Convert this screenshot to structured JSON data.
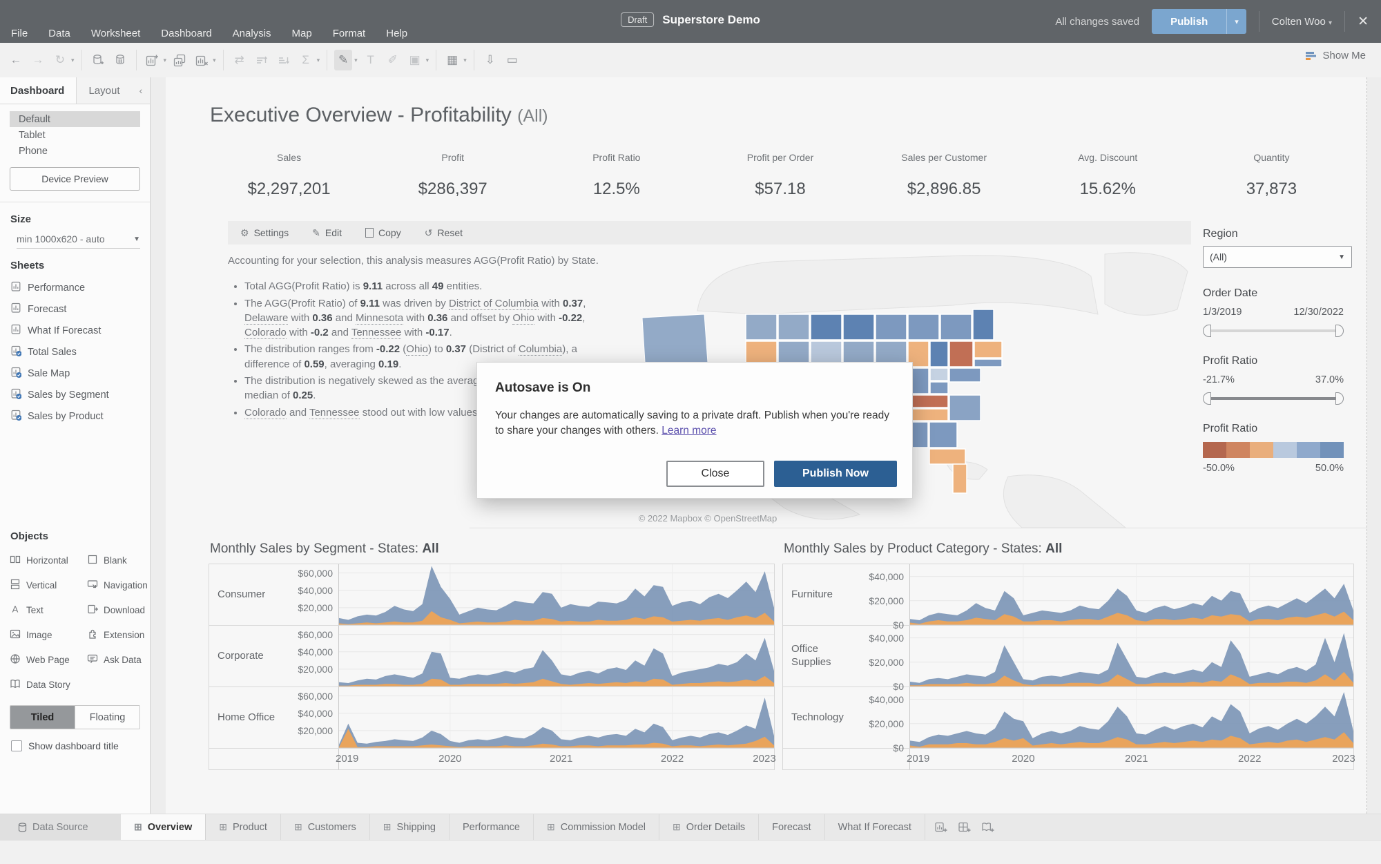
{
  "topbar": {
    "menus": [
      "File",
      "Data",
      "Worksheet",
      "Dashboard",
      "Analysis",
      "Map",
      "Format",
      "Help"
    ],
    "draft_badge": "Draft",
    "title": "Superstore Demo",
    "autosave_status": "All changes saved",
    "publish_label": "Publish",
    "user_name": "Colten Woo"
  },
  "toolbar": {
    "show_me": "Show Me"
  },
  "sidebar": {
    "tab_dashboard": "Dashboard",
    "tab_layout": "Layout",
    "device_modes": [
      "Default",
      "Tablet",
      "Phone"
    ],
    "selected_mode": "Default",
    "device_preview_label": "Device Preview",
    "size_label": "Size",
    "size_value": "min 1000x620 - auto",
    "sheets_label": "Sheets",
    "sheets": [
      {
        "label": "Performance",
        "used": false
      },
      {
        "label": "Forecast",
        "used": false
      },
      {
        "label": "What If Forecast",
        "used": false
      },
      {
        "label": "Total Sales",
        "used": true
      },
      {
        "label": "Sale Map",
        "used": true
      },
      {
        "label": "Sales by Segment",
        "used": true
      },
      {
        "label": "Sales by Product",
        "used": true
      }
    ],
    "objects_label": "Objects",
    "objects": [
      {
        "label": "Horizontal",
        "icon": "horizontal"
      },
      {
        "label": "Blank",
        "icon": "blank"
      },
      {
        "label": "Vertical",
        "icon": "vertical"
      },
      {
        "label": "Navigation",
        "icon": "navigation"
      },
      {
        "label": "Text",
        "icon": "text"
      },
      {
        "label": "Download",
        "icon": "download"
      },
      {
        "label": "Image",
        "icon": "image"
      },
      {
        "label": "Extension",
        "icon": "extension"
      },
      {
        "label": "Web Page",
        "icon": "web"
      },
      {
        "label": "Ask Data",
        "icon": "askdata"
      },
      {
        "label": "Data Story",
        "icon": "datastory"
      }
    ],
    "tiled_label": "Tiled",
    "floating_label": "Floating",
    "show_dashboard_title_label": "Show dashboard title"
  },
  "dashboard": {
    "title": "Executive Overview - Profitability",
    "title_suffix": "(All)",
    "kpis": [
      {
        "label": "Sales",
        "value": "$2,297,201"
      },
      {
        "label": "Profit",
        "value": "$286,397"
      },
      {
        "label": "Profit Ratio",
        "value": "12.5%"
      },
      {
        "label": "Profit per Order",
        "value": "$57.18"
      },
      {
        "label": "Sales per Customer",
        "value": "$2,896.85"
      },
      {
        "label": "Avg. Discount",
        "value": "15.62%"
      },
      {
        "label": "Quantity",
        "value": "37,873"
      }
    ],
    "actions": [
      "Settings",
      "Edit",
      "Copy",
      "Reset"
    ],
    "insight_intro": "Accounting for your selection, this analysis measures AGG(Profit Ratio) by State.",
    "insight_bullets": [
      "Total AGG(Profit Ratio) is **9.11** across all **49** entities.",
      "The AGG(Profit Ratio) of **9.11** was driven by [[District of Columbia]] with **0.37**, [[Delaware]] with **0.36** and [[Minnesota]] with **0.36** and offset by [[Ohio]] with **-0.22**, [[Colorado]] with **-0.2** and [[Tennessee]] with **-0.17**.",
      "The distribution ranges from **-0.22** ([[Ohio]]) to **0.37** (District of [[Columbia]]), a difference of **0.59**, averaging **0.19**.",
      "The distribution is negatively skewed as the average of **0.19** is less than the median of **0.25**.",
      "[[Colorado]] and [[Tennessee]] stood out with low values."
    ],
    "map_attribution": "© 2022 Mapbox © OpenStreetMap"
  },
  "filters": {
    "region_label": "Region",
    "region_value": "(All)",
    "order_date_label": "Order Date",
    "order_date_start": "1/3/2019",
    "order_date_end": "12/30/2022",
    "profit_ratio_label": "Profit Ratio",
    "profit_ratio_min": "-21.7%",
    "profit_ratio_max": "37.0%",
    "legend_label": "Profit Ratio",
    "legend_min": "-50.0%",
    "legend_max": "50.0%",
    "legend_colors": [
      "#b4674e",
      "#cf8560",
      "#e9ae7c",
      "#b9c9de",
      "#8fa9cc",
      "#7292ba"
    ]
  },
  "modal": {
    "title": "Autosave is On",
    "body": "Your changes are automatically saving to a private draft. Publish when you're ready to share your changes with others.",
    "link_label": "Learn more",
    "close_label": "Close",
    "publish_label": "Publish Now"
  },
  "bottom_tabs": {
    "data_source": "Data Source",
    "active": "Overview",
    "tabs": [
      {
        "label": "Overview",
        "icon": true
      },
      {
        "label": "Product",
        "icon": true
      },
      {
        "label": "Customers",
        "icon": true
      },
      {
        "label": "Shipping",
        "icon": true
      },
      {
        "label": "Performance",
        "icon": false
      },
      {
        "label": "Commission Model",
        "icon": true
      },
      {
        "label": "Order Details",
        "icon": true
      },
      {
        "label": "Forecast",
        "icon": false
      },
      {
        "label": "What If Forecast",
        "icon": false
      }
    ]
  },
  "chart_data": [
    {
      "type": "area",
      "title": "Monthly Sales by Segment - States:",
      "title_bold": "All",
      "unit": "USD thousands",
      "x_years": [
        "2019",
        "2020",
        "2021",
        "2022",
        "2023"
      ],
      "ymax": 70,
      "colors": {
        "sales": "#7e97b7",
        "profit": "#e9a45c"
      },
      "rows": [
        {
          "label": "Consumer",
          "ticks": [
            "$60,000",
            "$40,000",
            "$20,000"
          ],
          "sales": [
            8,
            6,
            10,
            12,
            11,
            15,
            22,
            18,
            16,
            24,
            68,
            44,
            30,
            12,
            16,
            20,
            18,
            17,
            22,
            28,
            26,
            25,
            38,
            36,
            20,
            24,
            22,
            21,
            27,
            26,
            25,
            29,
            42,
            33,
            46,
            44,
            22,
            26,
            28,
            24,
            32,
            36,
            31,
            40,
            50,
            38,
            62,
            20
          ],
          "profit": [
            2,
            1,
            2,
            3,
            2,
            3,
            4,
            3,
            3,
            5,
            16,
            9,
            6,
            2,
            3,
            4,
            3,
            3,
            4,
            6,
            5,
            5,
            8,
            7,
            4,
            5,
            4,
            4,
            6,
            5,
            5,
            6,
            9,
            7,
            10,
            9,
            4,
            5,
            6,
            5,
            7,
            8,
            6,
            9,
            11,
            8,
            14,
            4
          ]
        },
        {
          "label": "Corporate",
          "ticks": [
            "$60,000",
            "$40,000",
            "$20,000"
          ],
          "sales": [
            5,
            4,
            7,
            9,
            8,
            12,
            14,
            12,
            10,
            15,
            40,
            38,
            10,
            9,
            12,
            14,
            13,
            15,
            18,
            16,
            20,
            22,
            42,
            30,
            14,
            12,
            16,
            18,
            15,
            20,
            22,
            19,
            30,
            24,
            44,
            38,
            12,
            16,
            18,
            20,
            22,
            26,
            24,
            28,
            38,
            30,
            56,
            18
          ],
          "profit": [
            1,
            1,
            2,
            2,
            2,
            3,
            3,
            2,
            2,
            3,
            9,
            8,
            2,
            2,
            3,
            3,
            3,
            3,
            4,
            3,
            4,
            5,
            9,
            6,
            3,
            2,
            3,
            4,
            3,
            4,
            5,
            4,
            6,
            5,
            9,
            8,
            2,
            3,
            4,
            4,
            5,
            6,
            5,
            6,
            8,
            6,
            12,
            4
          ]
        },
        {
          "label": "Home Office",
          "ticks": [
            "$60,000",
            "$40,000",
            "$20,000"
          ],
          "sales": [
            4,
            28,
            6,
            5,
            7,
            8,
            10,
            9,
            8,
            12,
            20,
            16,
            8,
            6,
            9,
            10,
            9,
            11,
            14,
            12,
            11,
            16,
            24,
            20,
            10,
            9,
            12,
            14,
            12,
            15,
            16,
            14,
            22,
            18,
            28,
            24,
            9,
            12,
            14,
            12,
            16,
            18,
            15,
            20,
            26,
            22,
            58,
            14
          ],
          "profit": [
            1,
            22,
            1,
            1,
            2,
            2,
            2,
            2,
            2,
            3,
            4,
            3,
            2,
            1,
            2,
            2,
            2,
            2,
            3,
            2,
            2,
            3,
            5,
            4,
            2,
            2,
            3,
            3,
            2,
            3,
            3,
            3,
            4,
            4,
            6,
            5,
            2,
            3,
            3,
            2,
            3,
            4,
            3,
            4,
            5,
            8,
            13,
            3
          ]
        }
      ],
      "tick_values": [
        60,
        40,
        20
      ]
    },
    {
      "type": "area",
      "title": "Monthly Sales by Product Category - States:",
      "title_bold": "All",
      "unit": "USD thousands",
      "x_years": [
        "2019",
        "2020",
        "2021",
        "2022",
        "2023"
      ],
      "ymax": 50,
      "colors": {
        "sales": "#7e97b7",
        "profit": "#e9a45c"
      },
      "rows": [
        {
          "label": "Furniture",
          "ticks": [
            "$40,000",
            "$20,000",
            "$0"
          ],
          "sales": [
            5,
            4,
            8,
            10,
            9,
            8,
            12,
            18,
            14,
            12,
            28,
            22,
            8,
            10,
            12,
            11,
            10,
            12,
            16,
            14,
            13,
            20,
            30,
            24,
            12,
            10,
            14,
            16,
            13,
            15,
            18,
            16,
            24,
            20,
            28,
            26,
            10,
            14,
            16,
            14,
            18,
            22,
            18,
            24,
            30,
            22,
            34,
            12
          ],
          "profit": [
            2,
            1,
            3,
            4,
            3,
            3,
            4,
            6,
            5,
            4,
            9,
            7,
            3,
            3,
            4,
            4,
            3,
            4,
            5,
            5,
            4,
            7,
            10,
            8,
            4,
            3,
            5,
            5,
            4,
            5,
            6,
            5,
            8,
            7,
            9,
            8,
            3,
            5,
            5,
            4,
            6,
            7,
            6,
            8,
            10,
            7,
            11,
            4
          ]
        },
        {
          "label": "Office Supplies",
          "ticks": [
            "$40,000",
            "$20,000",
            "$0"
          ],
          "sales": [
            4,
            3,
            6,
            7,
            6,
            8,
            10,
            9,
            8,
            12,
            34,
            20,
            6,
            5,
            8,
            9,
            8,
            10,
            12,
            11,
            10,
            14,
            36,
            22,
            8,
            7,
            10,
            12,
            10,
            12,
            14,
            12,
            20,
            16,
            38,
            28,
            8,
            10,
            12,
            10,
            14,
            16,
            13,
            18,
            40,
            20,
            44,
            10
          ],
          "profit": [
            1,
            1,
            2,
            2,
            2,
            2,
            3,
            2,
            2,
            3,
            9,
            5,
            2,
            1,
            2,
            2,
            2,
            3,
            3,
            3,
            2,
            4,
            10,
            6,
            2,
            2,
            3,
            3,
            3,
            3,
            4,
            3,
            5,
            4,
            10,
            7,
            2,
            3,
            3,
            3,
            4,
            4,
            3,
            5,
            10,
            5,
            12,
            3
          ]
        },
        {
          "label": "Technology",
          "ticks": [
            "$40,000",
            "$20,000",
            "$0"
          ],
          "sales": [
            6,
            5,
            9,
            11,
            10,
            12,
            14,
            12,
            11,
            16,
            30,
            24,
            22,
            8,
            12,
            14,
            12,
            14,
            18,
            16,
            15,
            22,
            34,
            26,
            12,
            11,
            15,
            18,
            15,
            18,
            20,
            17,
            26,
            22,
            36,
            30,
            12,
            16,
            18,
            15,
            20,
            24,
            20,
            26,
            34,
            26,
            46,
            14
          ],
          "profit": [
            2,
            1,
            3,
            3,
            3,
            4,
            4,
            3,
            3,
            5,
            8,
            6,
            8,
            2,
            3,
            4,
            3,
            4,
            5,
            4,
            4,
            6,
            9,
            7,
            3,
            3,
            4,
            5,
            4,
            5,
            6,
            5,
            7,
            6,
            10,
            8,
            3,
            4,
            5,
            4,
            6,
            7,
            5,
            7,
            9,
            7,
            13,
            4
          ]
        }
      ],
      "tick_values": [
        40,
        20,
        0
      ]
    }
  ]
}
